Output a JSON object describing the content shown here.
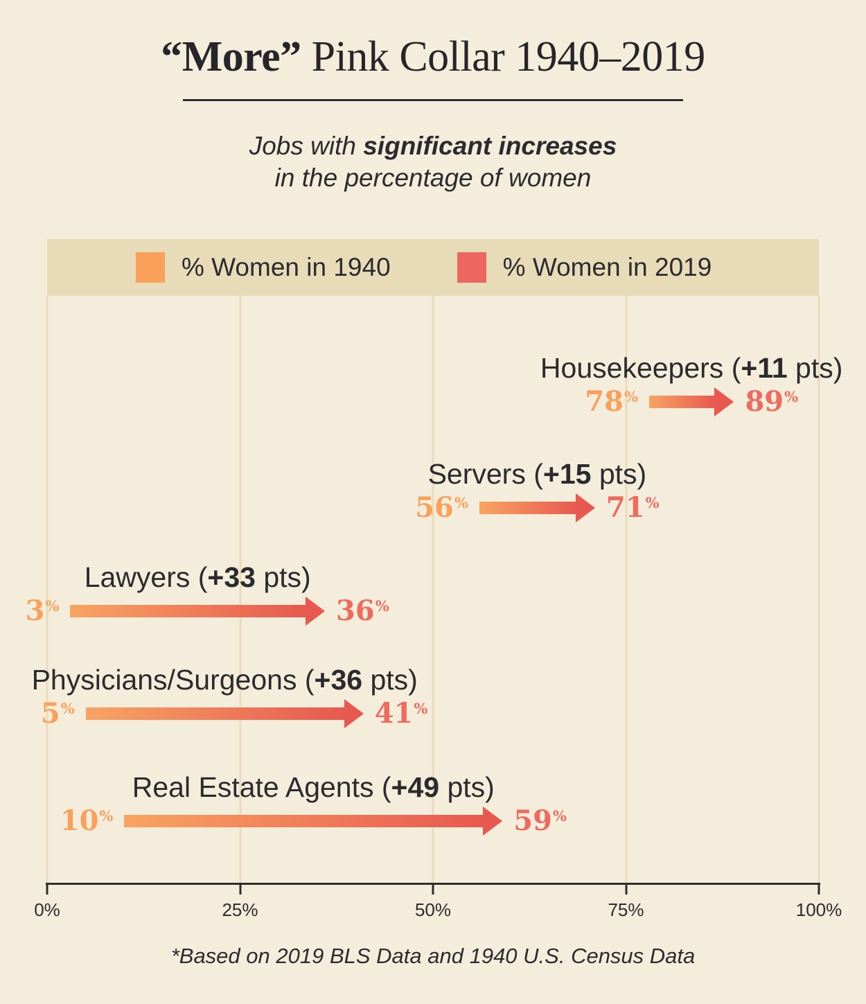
{
  "title": {
    "emph": "“More”",
    "rest": " Pink Collar 1940–2019"
  },
  "subtitle": {
    "line1_pre": "Jobs with ",
    "line1_bold": "significant increases",
    "line2": "in the percentage of women"
  },
  "legend": {
    "items": [
      {
        "label": "% Women in 1940",
        "color": "#f9a05b"
      },
      {
        "label": "% Women in 2019",
        "color": "#eb675f"
      }
    ]
  },
  "footnote": "*Based on 2019 BLS Data and 1940 U.S. Census Data",
  "chart_data": {
    "type": "arrow-range",
    "title": "“More” Pink Collar 1940–2019",
    "subtitle": "Jobs with significant increases in the percentage of women",
    "unit": "%",
    "legend_position": "top",
    "grid": true,
    "axis": {
      "min": 0,
      "max": 100,
      "values": [
        0,
        25,
        50,
        75,
        100
      ],
      "ticks": [
        "0%",
        "25%",
        "50%",
        "75%",
        "100%"
      ]
    },
    "series_labels": [
      "% Women in 1940",
      "% Women in 2019"
    ],
    "rows": [
      {
        "job": "Housekeepers",
        "delta_label": "+11",
        "pts_label": "pts",
        "start": 78,
        "end": 89
      },
      {
        "job": "Servers",
        "delta_label": "+15",
        "pts_label": "pts",
        "start": 56,
        "end": 71
      },
      {
        "job": "Lawyers",
        "delta_label": "+33",
        "pts_label": "pts",
        "start": 3,
        "end": 36
      },
      {
        "job": "Physicians/Surgeons",
        "delta_label": "+36",
        "pts_label": "pts",
        "start": 5,
        "end": 41
      },
      {
        "job": "Real Estate Agents",
        "delta_label": "+49",
        "pts_label": "pts",
        "start": 10,
        "end": 59
      }
    ],
    "colors": {
      "start_value": "#f9a05a",
      "end_value": "#ee6b5f",
      "gradient_from": "#f8a463",
      "gradient_to": "#e7594f"
    }
  }
}
